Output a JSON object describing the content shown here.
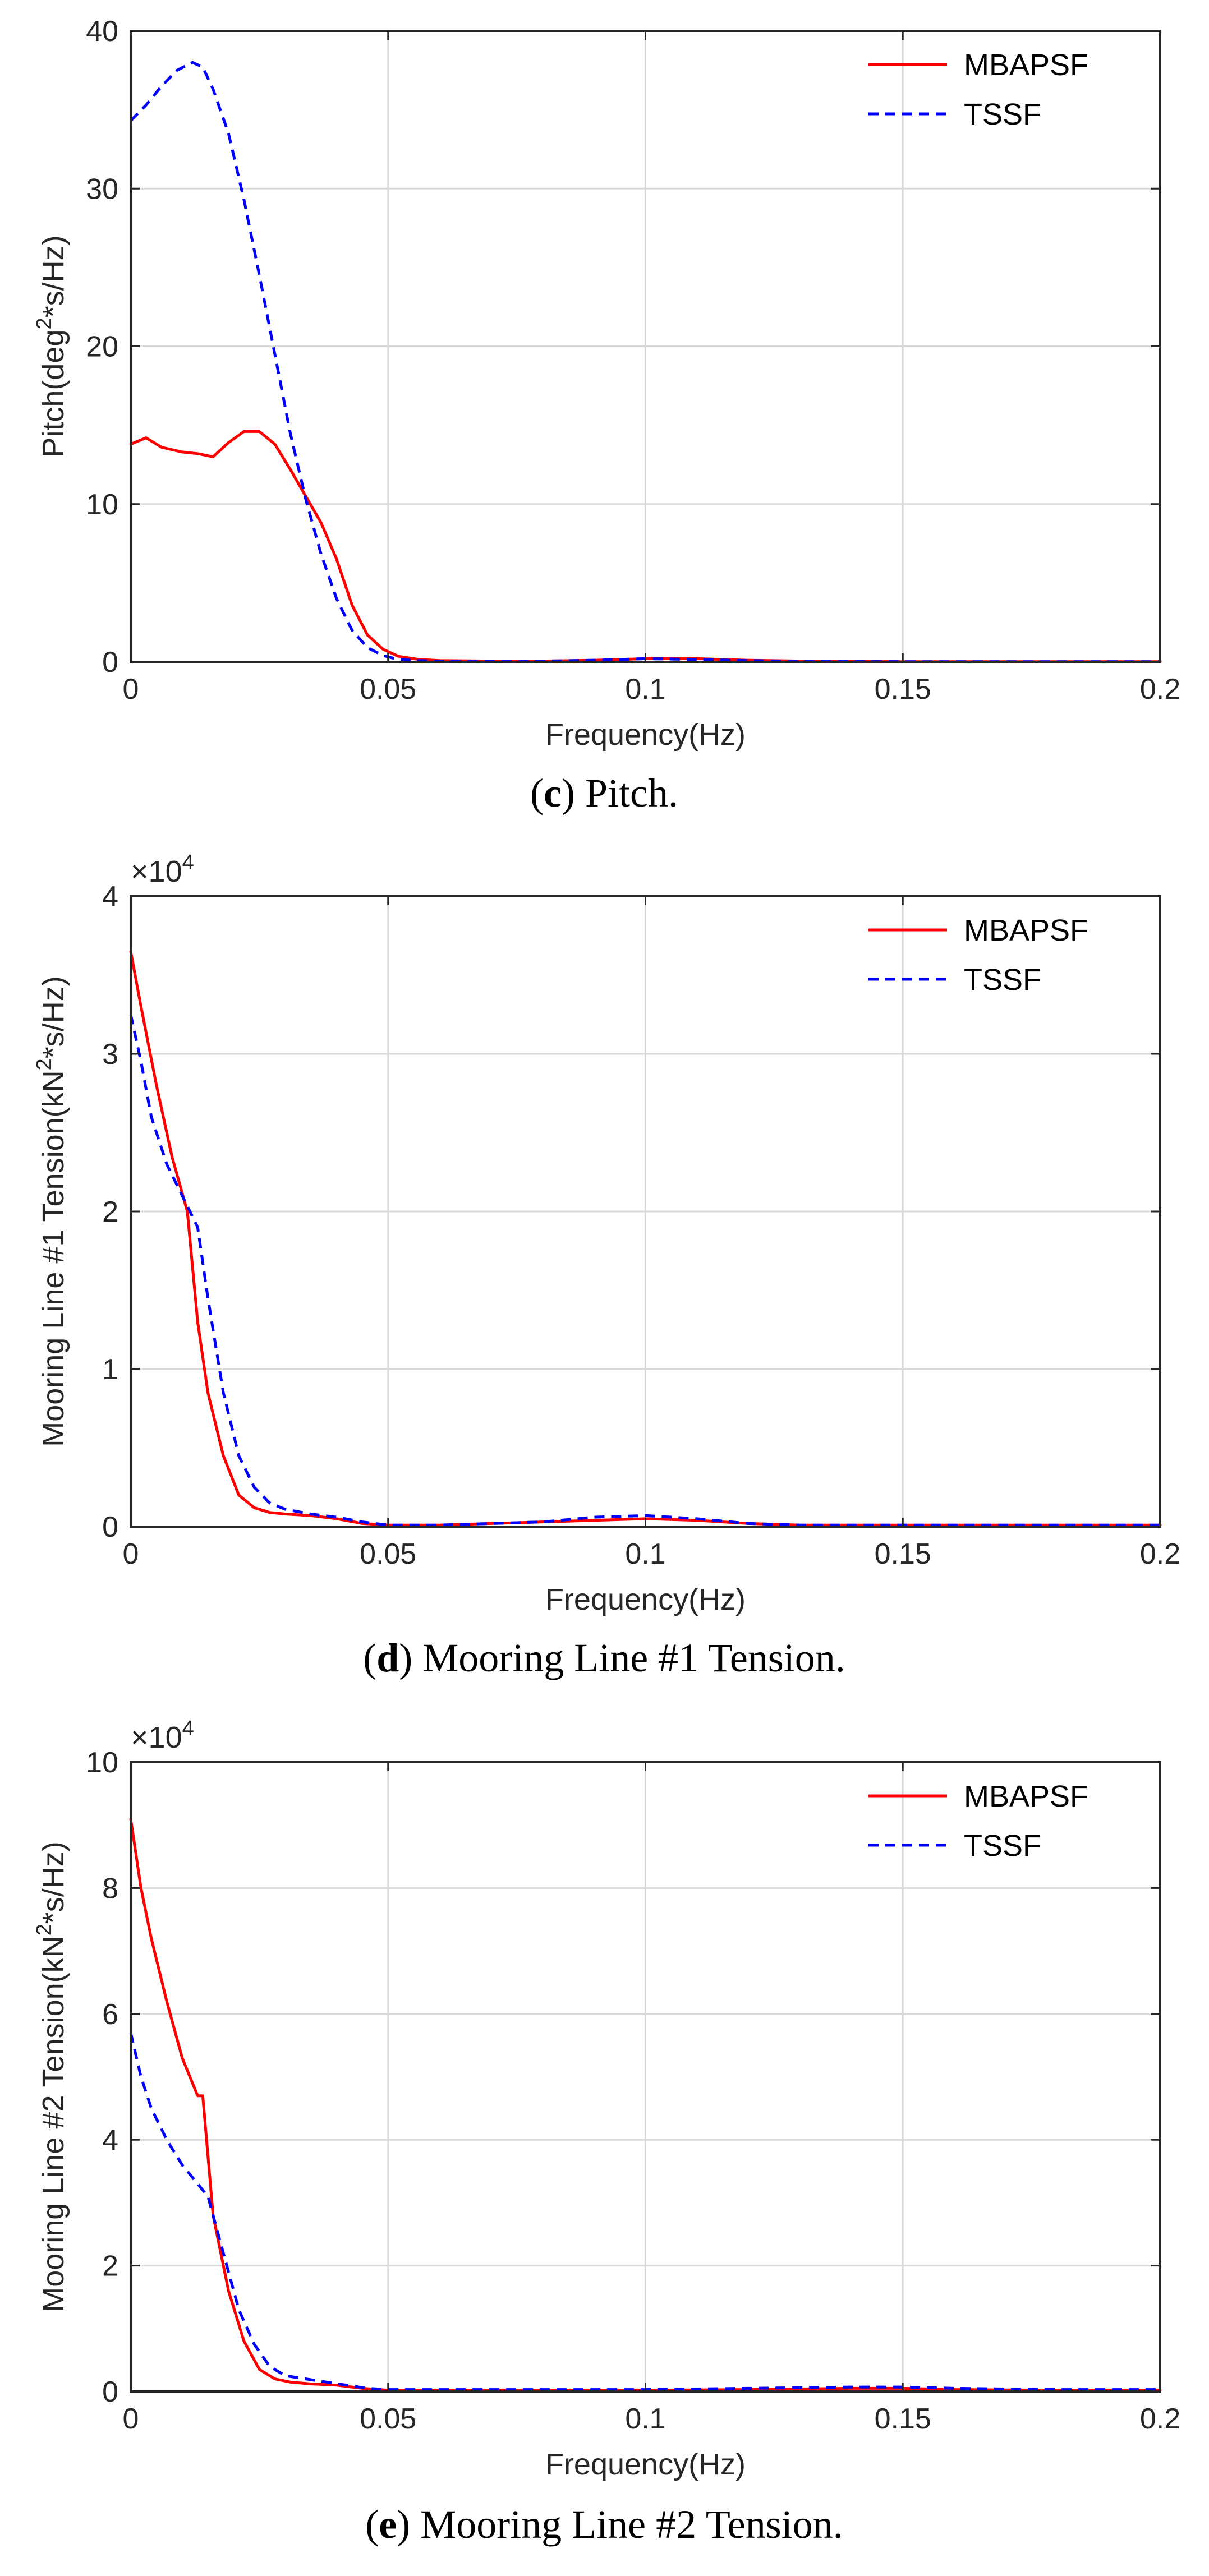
{
  "legend_labels": [
    "MBAPSF",
    "TSSF"
  ],
  "series_colors": {
    "MBAPSF": "#ff0000",
    "TSSF": "#0000ff"
  },
  "chart_data": [
    {
      "type": "line",
      "caption_letter": "c",
      "caption_text": " Pitch.",
      "xlabel": "Frequency(Hz)",
      "ylabel_base": "Pitch(deg",
      "ylabel_sup": "2",
      "ylabel_tail": "*s/Hz)",
      "multiplier_base": "",
      "multiplier_exp": "",
      "xlim": [
        0,
        0.2
      ],
      "ylim": [
        0,
        40
      ],
      "xticks": [
        0,
        0.05,
        0.1,
        0.15,
        0.2
      ],
      "xtick_labels": [
        "0",
        "0.05",
        "0.1",
        "0.15",
        "0.2"
      ],
      "yticks": [
        0,
        10,
        20,
        30,
        40
      ],
      "ytick_labels": [
        "0",
        "10",
        "20",
        "30",
        "40"
      ],
      "legend_position": "top-right",
      "series": [
        {
          "name": "MBAPSF",
          "style": "solid",
          "x": [
            0,
            0.003,
            0.006,
            0.01,
            0.013,
            0.016,
            0.019,
            0.022,
            0.025,
            0.028,
            0.031,
            0.034,
            0.037,
            0.04,
            0.043,
            0.046,
            0.049,
            0.052,
            0.056,
            0.06,
            0.07,
            0.08,
            0.09,
            0.1,
            0.11,
            0.12,
            0.13,
            0.14,
            0.15,
            0.16,
            0.17,
            0.18,
            0.19,
            0.2
          ],
          "y": [
            13.8,
            14.2,
            13.6,
            13.3,
            13.2,
            13.0,
            13.9,
            14.6,
            14.6,
            13.8,
            12.2,
            10.5,
            8.8,
            6.5,
            3.6,
            1.7,
            0.8,
            0.35,
            0.15,
            0.08,
            0.05,
            0.05,
            0.1,
            0.2,
            0.2,
            0.1,
            0.05,
            0.02,
            0.01,
            0.01,
            0.01,
            0.01,
            0.01,
            0.01
          ]
        },
        {
          "name": "TSSF",
          "style": "dashed",
          "x": [
            0,
            0.003,
            0.006,
            0.009,
            0.012,
            0.014,
            0.016,
            0.019,
            0.022,
            0.025,
            0.028,
            0.031,
            0.034,
            0.037,
            0.04,
            0.043,
            0.046,
            0.049,
            0.052,
            0.056,
            0.06,
            0.07,
            0.08,
            0.09,
            0.1,
            0.11,
            0.12,
            0.13,
            0.14,
            0.15,
            0.16,
            0.17,
            0.18,
            0.19,
            0.2
          ],
          "y": [
            34.3,
            35.3,
            36.5,
            37.5,
            38.0,
            37.7,
            36.3,
            33.5,
            29.3,
            24.5,
            19.5,
            14.5,
            10.3,
            6.8,
            4.0,
            2.0,
            0.9,
            0.4,
            0.15,
            0.08,
            0.05,
            0.04,
            0.05,
            0.1,
            0.2,
            0.15,
            0.08,
            0.04,
            0.02,
            0.01,
            0.01,
            0.01,
            0.01,
            0.01,
            0.01
          ]
        }
      ]
    },
    {
      "type": "line",
      "caption_letter": "d",
      "caption_text": " Mooring Line #1 Tension.",
      "xlabel": "Frequency(Hz)",
      "ylabel_base": "Mooring Line #1 Tension(kN",
      "ylabel_sup": "2",
      "ylabel_tail": "*s/Hz)",
      "multiplier_base": "×10",
      "multiplier_exp": "4",
      "xlim": [
        0,
        0.2
      ],
      "ylim": [
        0,
        4
      ],
      "xticks": [
        0,
        0.05,
        0.1,
        0.15,
        0.2
      ],
      "xtick_labels": [
        "0",
        "0.05",
        "0.1",
        "0.15",
        "0.2"
      ],
      "yticks": [
        0,
        1,
        2,
        3,
        4
      ],
      "ytick_labels": [
        "0",
        "1",
        "2",
        "3",
        "4"
      ],
      "legend_position": "top-right",
      "series": [
        {
          "name": "MBAPSF",
          "style": "solid",
          "x": [
            0,
            0.002,
            0.005,
            0.008,
            0.011,
            0.013,
            0.015,
            0.018,
            0.021,
            0.024,
            0.027,
            0.03,
            0.035,
            0.04,
            0.045,
            0.05,
            0.06,
            0.07,
            0.08,
            0.09,
            0.1,
            0.11,
            0.12,
            0.13,
            0.14,
            0.15,
            0.16,
            0.17,
            0.18,
            0.19,
            0.2
          ],
          "y": [
            3.65,
            3.3,
            2.8,
            2.35,
            2.0,
            1.3,
            0.85,
            0.45,
            0.2,
            0.12,
            0.09,
            0.08,
            0.07,
            0.05,
            0.02,
            0.01,
            0.01,
            0.02,
            0.03,
            0.04,
            0.05,
            0.04,
            0.02,
            0.01,
            0.01,
            0.01,
            0.01,
            0.01,
            0.01,
            0.01,
            0.01
          ]
        },
        {
          "name": "TSSF",
          "style": "dashed",
          "x": [
            0,
            0.002,
            0.004,
            0.007,
            0.01,
            0.013,
            0.015,
            0.018,
            0.021,
            0.024,
            0.027,
            0.03,
            0.035,
            0.04,
            0.045,
            0.05,
            0.06,
            0.07,
            0.08,
            0.09,
            0.1,
            0.11,
            0.12,
            0.13,
            0.14,
            0.15,
            0.16,
            0.17,
            0.18,
            0.19,
            0.2
          ],
          "y": [
            3.25,
            2.95,
            2.6,
            2.3,
            2.1,
            1.9,
            1.45,
            0.85,
            0.45,
            0.25,
            0.15,
            0.11,
            0.08,
            0.06,
            0.03,
            0.01,
            0.01,
            0.02,
            0.03,
            0.06,
            0.07,
            0.05,
            0.02,
            0.01,
            0.01,
            0.01,
            0.01,
            0.01,
            0.01,
            0.01,
            0.01
          ]
        }
      ]
    },
    {
      "type": "line",
      "caption_letter": "e",
      "caption_text": " Mooring Line #2 Tension.",
      "xlabel": "Frequency(Hz)",
      "ylabel_base": "Mooring Line #2 Tension(kN",
      "ylabel_sup": "2",
      "ylabel_tail": "*s/Hz)",
      "multiplier_base": "×10",
      "multiplier_exp": "4",
      "xlim": [
        0,
        0.2
      ],
      "ylim": [
        0,
        10
      ],
      "xticks": [
        0,
        0.05,
        0.1,
        0.15,
        0.2
      ],
      "xtick_labels": [
        "0",
        "0.05",
        "0.1",
        "0.15",
        "0.2"
      ],
      "yticks": [
        0,
        2,
        4,
        6,
        8,
        10
      ],
      "ytick_labels": [
        "0",
        "2",
        "4",
        "6",
        "8",
        "10"
      ],
      "legend_position": "top-right",
      "series": [
        {
          "name": "MBAPSF",
          "style": "solid",
          "x": [
            0,
            0.002,
            0.004,
            0.007,
            0.01,
            0.013,
            0.014,
            0.016,
            0.019,
            0.022,
            0.025,
            0.028,
            0.031,
            0.035,
            0.04,
            0.045,
            0.05,
            0.06,
            0.08,
            0.1,
            0.12,
            0.14,
            0.15,
            0.16,
            0.18,
            0.2
          ],
          "y": [
            9.1,
            8.0,
            7.2,
            6.2,
            5.3,
            4.7,
            4.7,
            2.8,
            1.6,
            0.8,
            0.35,
            0.2,
            0.15,
            0.12,
            0.1,
            0.05,
            0.02,
            0.02,
            0.02,
            0.02,
            0.03,
            0.05,
            0.05,
            0.03,
            0.02,
            0.02
          ]
        },
        {
          "name": "TSSF",
          "style": "dashed",
          "x": [
            0,
            0.002,
            0.004,
            0.007,
            0.01,
            0.013,
            0.015,
            0.018,
            0.021,
            0.024,
            0.027,
            0.03,
            0.034,
            0.038,
            0.042,
            0.046,
            0.05,
            0.06,
            0.08,
            0.1,
            0.12,
            0.14,
            0.15,
            0.16,
            0.18,
            0.2
          ],
          "y": [
            5.7,
            5.0,
            4.5,
            4.0,
            3.6,
            3.3,
            3.1,
            2.2,
            1.3,
            0.75,
            0.4,
            0.25,
            0.2,
            0.15,
            0.1,
            0.05,
            0.03,
            0.03,
            0.03,
            0.03,
            0.05,
            0.07,
            0.07,
            0.05,
            0.03,
            0.03
          ]
        }
      ]
    }
  ]
}
